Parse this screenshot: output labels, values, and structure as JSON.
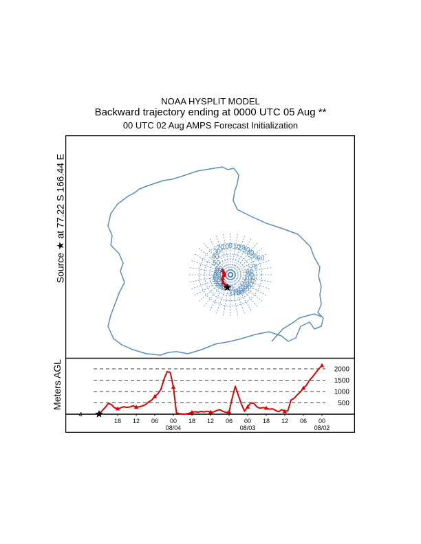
{
  "chart_data": {
    "type": "line",
    "model": "NOAA HYSPLIT MODEL",
    "title": "Backward trajectory ending at 0000 UTC 05 Aug **",
    "subtitle": "00 UTC 02 Aug    AMPS  Forecast Initialization",
    "source_label": "Source ★ at   77.22 S  166.44 E",
    "map": {
      "projection": "south-polar-stereographic",
      "lat_circles": [
        -60,
        -65,
        -70,
        -75,
        -80,
        -85
      ],
      "meridian_step_deg": 10,
      "longitude_labels": [
        {
          "text": "-60",
          "lon": -60,
          "lat": -58
        },
        {
          "text": "-70",
          "lon": -70,
          "lat": -67
        },
        {
          "text": "-80",
          "lon": -80,
          "lat": -72
        },
        {
          "text": "-90",
          "lon": -90,
          "lat": -72
        },
        {
          "text": "-100",
          "lon": -100,
          "lat": -72
        },
        {
          "text": "-110",
          "lon": -110,
          "lat": -72
        },
        {
          "text": "-120",
          "lon": -120,
          "lat": -72
        },
        {
          "text": "-130",
          "lon": -130,
          "lat": -72
        },
        {
          "text": "-140",
          "lon": -140,
          "lat": -72
        },
        {
          "text": "-150",
          "lon": -150,
          "lat": -72
        },
        {
          "text": "-160",
          "lon": -160,
          "lat": -72
        },
        {
          "text": "-170",
          "lon": -170,
          "lat": -72
        },
        {
          "text": "170",
          "lon": 170,
          "lat": -77
        },
        {
          "text": "160",
          "lon": 160,
          "lat": -77
        },
        {
          "text": "150",
          "lon": 150,
          "lat": -77
        },
        {
          "text": "140",
          "lon": 140,
          "lat": -77
        },
        {
          "text": "130",
          "lon": 130,
          "lat": -77
        },
        {
          "text": "120",
          "lon": 120,
          "lat": -77
        },
        {
          "text": "110",
          "lon": 110,
          "lat": -77
        },
        {
          "text": "100",
          "lon": 100,
          "lat": -77
        },
        {
          "text": "90",
          "lon": 90,
          "lat": -77
        },
        {
          "text": "80",
          "lon": 80,
          "lat": -77
        },
        {
          "text": "70",
          "lon": 70,
          "lat": -77
        },
        {
          "text": "60",
          "lon": 60,
          "lat": -77
        },
        {
          "text": "50",
          "lon": 50,
          "lat": -72
        },
        {
          "text": "40",
          "lon": 40,
          "lat": -67
        },
        {
          "text": "30",
          "lon": 30,
          "lat": -64
        },
        {
          "text": "20",
          "lon": 20,
          "lat": -62
        },
        {
          "text": "10",
          "lon": 10,
          "lat": -62
        },
        {
          "text": "0",
          "lon": 0,
          "lat": -62
        },
        {
          "text": "-10",
          "lon": -10,
          "lat": -62
        },
        {
          "text": "-20",
          "lon": -20,
          "lat": -62
        },
        {
          "text": "-30",
          "lon": -30,
          "lat": -62
        },
        {
          "text": "-40",
          "lon": -40,
          "lat": -62
        },
        {
          "text": "-50",
          "lon": -50,
          "lat": -62
        }
      ],
      "trajectory": {
        "lat": [
          -77.22,
          -77.8,
          -78.2,
          -78.6,
          -79.0,
          -79.6,
          -80.2,
          -81.0,
          -81.8,
          -82.4,
          -83.0,
          -83.4,
          -83.6,
          -83.8,
          -83.8,
          -83.7,
          -83.4,
          -83.0,
          -82.5,
          -82.0,
          -81.5,
          -81.0
        ],
        "lon": [
          166.44,
          163.0,
          159.0,
          154.0,
          147.0,
          138.0,
          128.0,
          120.0,
          113.0,
          108.0,
          101.0,
          95.0,
          90.0,
          85.0,
          80.0,
          76.0,
          72.0,
          69.0,
          66.0,
          63.0,
          61.0,
          59.0
        ],
        "marker_indices": [
          2,
          5,
          8,
          11,
          14,
          17,
          20
        ]
      }
    },
    "height_profile": {
      "ylabel": "Meters AGL",
      "yticks": [
        500,
        1000,
        1500,
        2000
      ],
      "ytick_labels": [
        "500",
        "1000",
        "1500",
        "2000"
      ],
      "ylim": [
        0,
        2300
      ],
      "xlim_hours": [
        0,
        72
      ],
      "time_direction": "backward from 08/05 00 UTC",
      "x_tick_hours": [
        6,
        12,
        18,
        24,
        30,
        36,
        42,
        48,
        54,
        60,
        66,
        72
      ],
      "x_tick_labels": [
        "18",
        "12",
        "06",
        "00",
        "18",
        "12",
        "06",
        "00",
        "18",
        "12",
        "06",
        "00"
      ],
      "date_labels": [
        {
          "hour": 24,
          "text": "08/04"
        },
        {
          "hour": 48,
          "text": "08/03"
        },
        {
          "hour": 72,
          "text": "08/02"
        }
      ],
      "start_level_label": "4",
      "start_height": 4,
      "series": [
        {
          "name": "trajectory height",
          "color": "#e00000",
          "hours": [
            0,
            1,
            2,
            3,
            4,
            5,
            6,
            7,
            8,
            9,
            10,
            11,
            12,
            13,
            14,
            15,
            16,
            17,
            18,
            19,
            20,
            21,
            22,
            23,
            24,
            25,
            26,
            27,
            28,
            29,
            30,
            31,
            32,
            33,
            34,
            35,
            36,
            37,
            38,
            39,
            40,
            41,
            42,
            43,
            44,
            45,
            46,
            47,
            48,
            49,
            50,
            51,
            52,
            53,
            54,
            55,
            56,
            57,
            58,
            59,
            60,
            61,
            62,
            63,
            64,
            65,
            66,
            67,
            68,
            69,
            70,
            71,
            72
          ],
          "values": [
            4,
            150,
            300,
            480,
            420,
            280,
            240,
            280,
            330,
            300,
            320,
            370,
            310,
            330,
            360,
            420,
            540,
            620,
            780,
            900,
            1100,
            1550,
            1880,
            1840,
            1200,
            60,
            20,
            10,
            10,
            40,
            80,
            110,
            90,
            120,
            100,
            130,
            90,
            100,
            160,
            200,
            120,
            80,
            100,
            700,
            1230,
            830,
            440,
            130,
            320,
            500,
            480,
            320,
            260,
            290,
            270,
            220,
            240,
            170,
            110,
            200,
            120,
            150,
            620,
            700,
            850,
            980,
            1150,
            1280,
            1500,
            1650,
            1830,
            2000,
            2150
          ],
          "marker_hours": [
            6,
            12,
            18,
            24,
            30,
            36,
            42,
            48,
            54,
            60,
            66,
            72
          ]
        }
      ]
    }
  }
}
